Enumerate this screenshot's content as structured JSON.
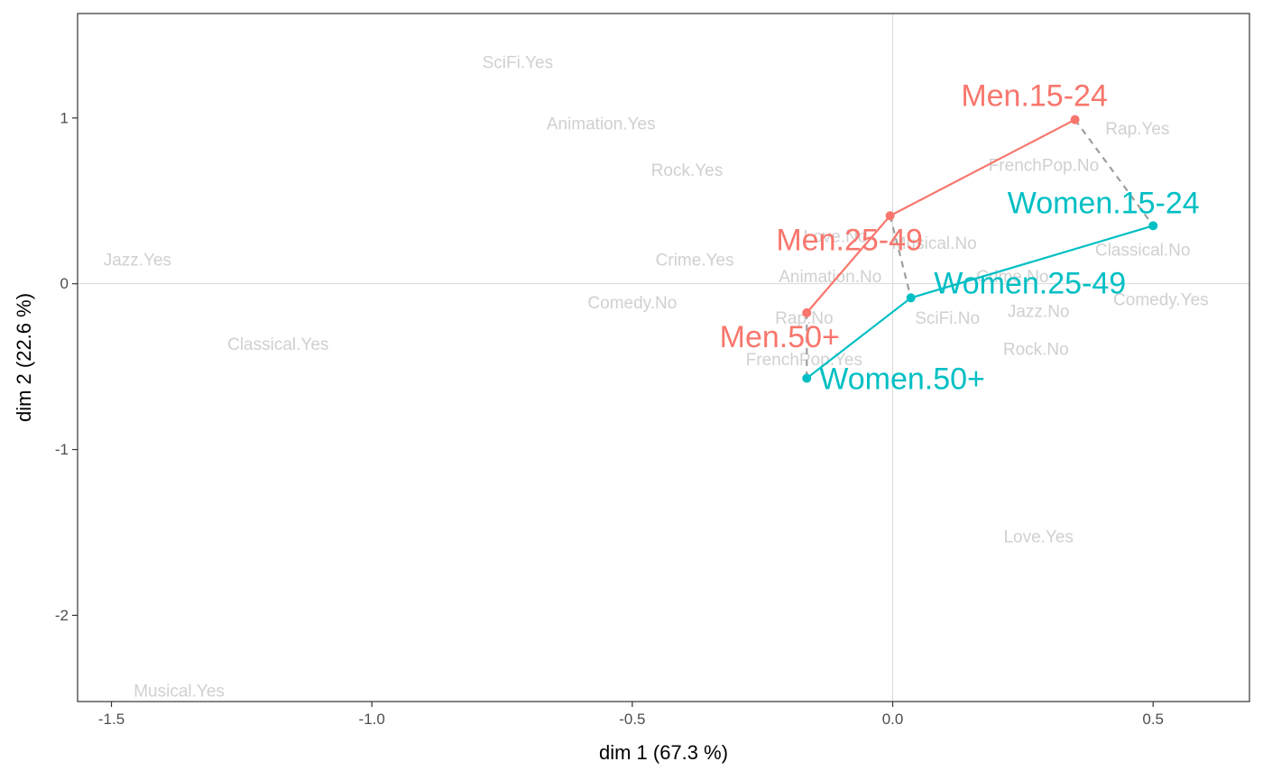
{
  "chart_data": {
    "type": "scatter",
    "xlabel": "dim 1 (67.3 %)",
    "ylabel": "dim 2 (22.6 %)",
    "xlim": [
      -1.565,
      0.685
    ],
    "ylim": [
      -2.52,
      1.63
    ],
    "xticks": [
      -1.5,
      -1.0,
      -0.5,
      0.0,
      0.5
    ],
    "xtick_labels": [
      "-1.5",
      "-1.0",
      "-0.5",
      "0.0",
      "0.5"
    ],
    "yticks": [
      1,
      0,
      -1,
      -2
    ],
    "ytick_labels": [
      "1",
      "0",
      "-1",
      "-2"
    ],
    "reference_lines": {
      "x": 0,
      "y": 0
    },
    "grid": false,
    "legend": "none",
    "background_points": [
      {
        "label": "SciFi.Yes",
        "x": -0.72,
        "y": 1.33
      },
      {
        "label": "Animation.Yes",
        "x": -0.56,
        "y": 0.96
      },
      {
        "label": "Rock.Yes",
        "x": -0.395,
        "y": 0.68
      },
      {
        "label": "Jazz.Yes",
        "x": -1.45,
        "y": 0.14
      },
      {
        "label": "Crime.Yes",
        "x": -0.38,
        "y": 0.14
      },
      {
        "label": "Love.No",
        "x": -0.11,
        "y": 0.28
      },
      {
        "label": "Musical.No",
        "x": 0.08,
        "y": 0.24
      },
      {
        "label": "Animation.No",
        "x": -0.12,
        "y": 0.04
      },
      {
        "label": "Comedy.No",
        "x": -0.5,
        "y": -0.12
      },
      {
        "label": "Rap.No",
        "x": -0.17,
        "y": -0.21
      },
      {
        "label": "Classical.Yes",
        "x": -1.18,
        "y": -0.37
      },
      {
        "label": "FrenchPop.Yes",
        "x": -0.17,
        "y": -0.46
      },
      {
        "label": "Rap.Yes",
        "x": 0.47,
        "y": 0.93
      },
      {
        "label": "FrenchPop.No",
        "x": 0.29,
        "y": 0.71
      },
      {
        "label": "Classical.No",
        "x": 0.48,
        "y": 0.2
      },
      {
        "label": "Crime.No",
        "x": 0.23,
        "y": 0.04
      },
      {
        "label": "Comedy.Yes",
        "x": 0.515,
        "y": -0.1
      },
      {
        "label": "Jazz.No",
        "x": 0.28,
        "y": -0.17
      },
      {
        "label": "SciFi.No",
        "x": 0.105,
        "y": -0.21
      },
      {
        "label": "Rock.No",
        "x": 0.275,
        "y": -0.4
      },
      {
        "label": "Love.Yes",
        "x": 0.28,
        "y": -1.53
      },
      {
        "label": "Musical.Yes",
        "x": -1.37,
        "y": -2.46
      }
    ],
    "series": [
      {
        "name": "Men",
        "color": "#F8766D",
        "points": [
          {
            "label": "Men.15-24",
            "x": 0.35,
            "y": 0.99
          },
          {
            "label": "Men.25-49",
            "x": -0.005,
            "y": 0.41
          },
          {
            "label": "Men.50+",
            "x": -0.165,
            "y": -0.175
          }
        ]
      },
      {
        "name": "Women",
        "color": "#00BFC4",
        "points": [
          {
            "label": "Women.15-24",
            "x": 0.5,
            "y": 0.35
          },
          {
            "label": "Women.25-49",
            "x": 0.035,
            "y": -0.085
          },
          {
            "label": "Women.50+",
            "x": -0.165,
            "y": -0.57
          }
        ]
      }
    ],
    "connector_color": "#9e9e9e"
  }
}
